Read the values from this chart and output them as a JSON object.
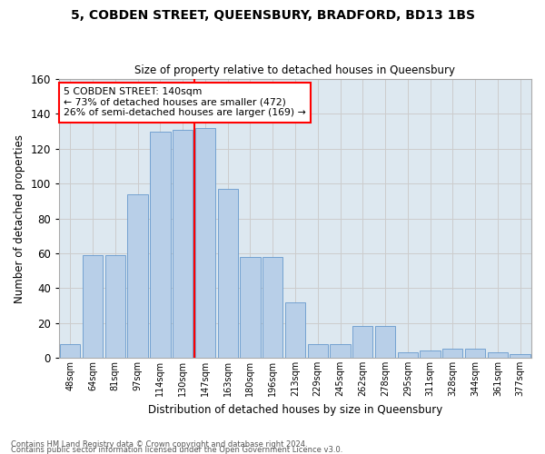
{
  "title": "5, COBDEN STREET, QUEENSBURY, BRADFORD, BD13 1BS",
  "subtitle": "Size of property relative to detached houses in Queensbury",
  "xlabel": "Distribution of detached houses by size in Queensbury",
  "ylabel": "Number of detached properties",
  "categories": [
    "48sqm",
    "64sqm",
    "81sqm",
    "97sqm",
    "114sqm",
    "130sqm",
    "147sqm",
    "163sqm",
    "180sqm",
    "196sqm",
    "213sqm",
    "229sqm",
    "245sqm",
    "262sqm",
    "278sqm",
    "295sqm",
    "311sqm",
    "328sqm",
    "344sqm",
    "361sqm",
    "377sqm"
  ],
  "values": [
    8,
    59,
    59,
    94,
    130,
    131,
    132,
    97,
    58,
    58,
    32,
    8,
    8,
    18,
    18,
    3,
    4,
    5,
    5,
    3,
    2
  ],
  "bar_color": "#b8cfe8",
  "bar_edge_color": "#6699cc",
  "vline_color": "red",
  "annotation_text": "5 COBDEN STREET: 140sqm\n← 73% of detached houses are smaller (472)\n26% of semi-detached houses are larger (169) →",
  "annotation_box_color": "white",
  "annotation_box_edge_color": "red",
  "ylim": [
    0,
    160
  ],
  "yticks": [
    0,
    20,
    40,
    60,
    80,
    100,
    120,
    140,
    160
  ],
  "grid_color": "#cccccc",
  "bg_color": "#dde8f0",
  "footer_line1": "Contains HM Land Registry data © Crown copyright and database right 2024.",
  "footer_line2": "Contains public sector information licensed under the Open Government Licence v3.0."
}
